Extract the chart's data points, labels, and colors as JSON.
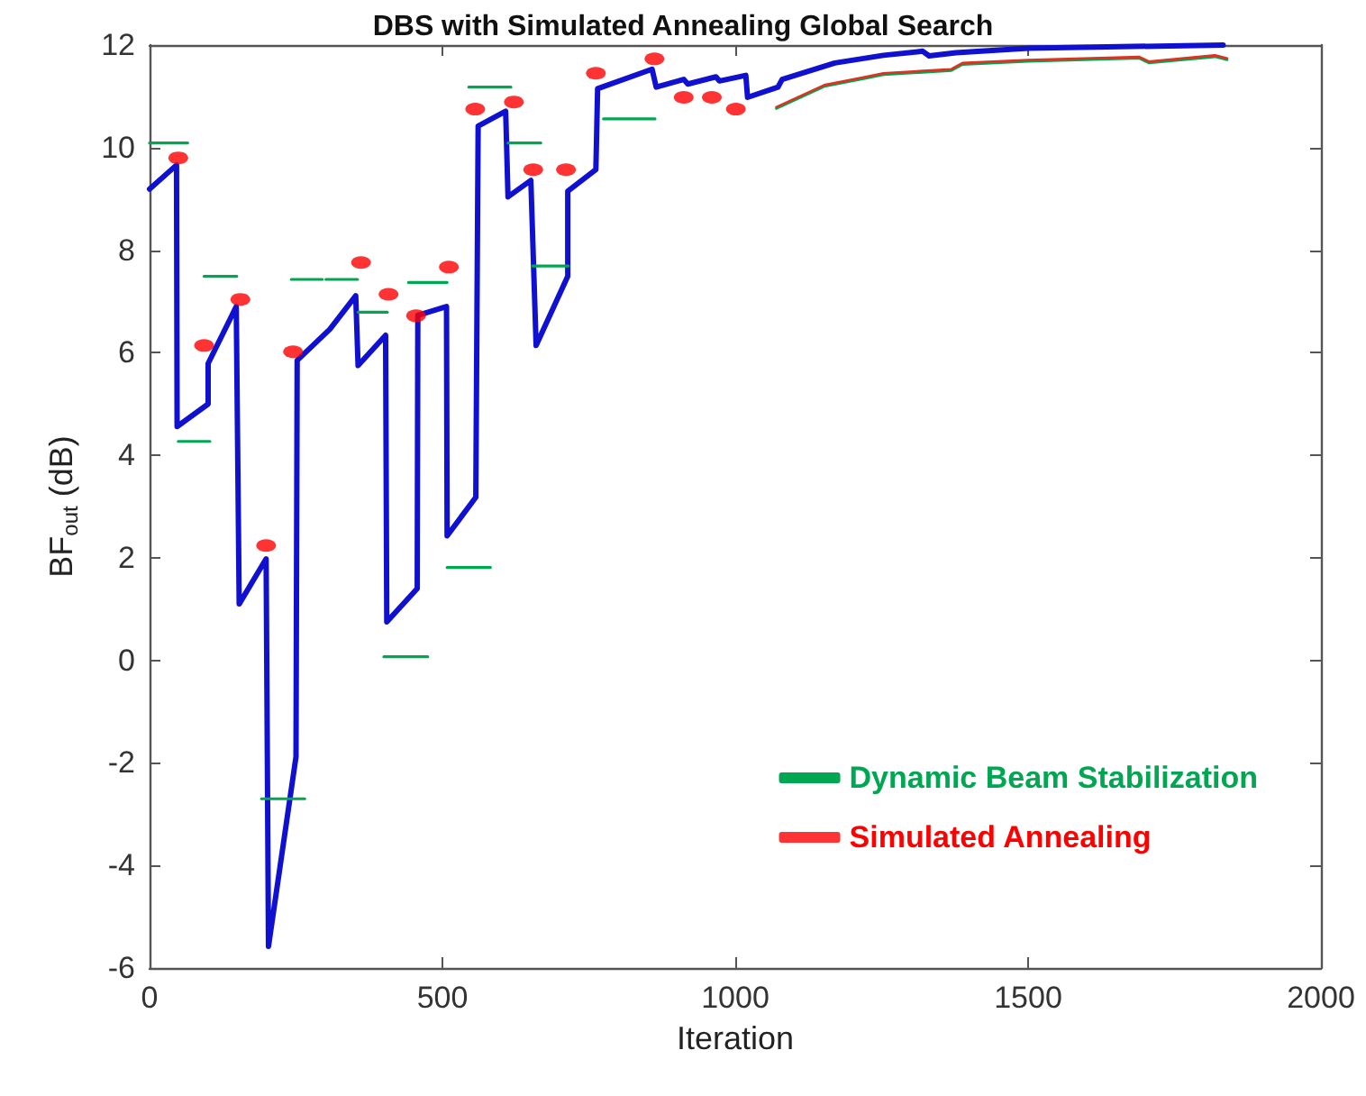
{
  "chart_data": {
    "type": "line",
    "title": "DBS with Simulated Annealing Global Search",
    "xlabel": "Iteration",
    "ylabel": "BF$_{out}$ (dB)",
    "xlim": [
      0,
      2000
    ],
    "xticks": [
      0,
      500,
      1000,
      1500,
      2000
    ],
    "ylim": [
      -6,
      12
    ],
    "yticks": [
      -6,
      -4,
      -2,
      0,
      2,
      4,
      6,
      8,
      10,
      12
    ],
    "grid": false,
    "legend": "bottom right",
    "series": [
      {
        "color": "#1010d0",
        "x": [
          0,
          46,
          47,
          100,
          100,
          148,
          153,
          199,
          203,
          250,
          252,
          308,
          352,
          356,
          403,
          405,
          457,
          458,
          507,
          508,
          557,
          561,
          608,
          612,
          651,
          660,
          714,
          714,
          762,
          765,
          858,
          865,
          912,
          919,
          967,
          973,
          1018,
          1021,
          1073,
          1080,
          1170,
          1253,
          1320,
          1331,
          1377,
          1500,
          1833
        ],
        "values": [
          9.19,
          9.66,
          4.56,
          5.0,
          5.79,
          6.9,
          1.1,
          1.98,
          -5.58,
          -1.88,
          5.85,
          6.46,
          7.11,
          5.75,
          6.34,
          0.75,
          1.4,
          6.73,
          6.9,
          2.43,
          3.18,
          10.42,
          10.71,
          9.04,
          9.36,
          6.14,
          7.49,
          9.15,
          9.57,
          11.15,
          11.53,
          11.18,
          11.33,
          11.24,
          11.38,
          11.3,
          11.41,
          10.98,
          11.18,
          11.33,
          11.65,
          11.8,
          11.88,
          11.79,
          11.85,
          11.94,
          12.0
        ]
      },
      {
        "name": "Dynamic Beam Stabilization",
        "color": "#00a651",
        "x": [
          0,
          65,
          null,
          49,
          103,
          null,
          93,
          149,
          null,
          242,
          295,
          null,
          301,
          355,
          null,
          356,
          406,
          null,
          442,
          508,
          null,
          545,
          617,
          null,
          612,
          668,
          null,
          654,
          715,
          null,
          775,
          863,
          null,
          508,
          582,
          null,
          400,
          475,
          null,
          191,
          265
        ],
        "values": [
          10.09,
          10.09,
          null,
          4.27,
          4.27,
          null,
          7.49,
          7.49,
          null,
          7.43,
          7.43,
          null,
          7.43,
          7.43,
          null,
          6.79,
          6.79,
          null,
          7.37,
          7.37,
          null,
          11.18,
          11.18,
          null,
          10.09,
          10.09,
          null,
          7.69,
          7.69,
          null,
          10.56,
          10.56,
          null,
          1.81,
          1.81,
          null,
          0.07,
          0.07,
          null,
          -2.7,
          -2.7
        ]
      },
      {
        "name": "Simulated Annealing",
        "type": "scatter",
        "marker": "circle",
        "color": "#ff0000",
        "x": [
          49,
          93,
          155,
          199,
          245,
          361,
          408,
          455,
          511,
          556,
          622,
          655,
          711,
          762,
          862,
          912,
          960,
          1001
        ],
        "values": [
          9.8,
          6.14,
          7.04,
          2.24,
          6.02,
          7.76,
          7.14,
          6.72,
          7.67,
          10.75,
          10.89,
          9.57,
          9.57,
          11.45,
          11.73,
          10.98,
          10.98,
          10.75
        ]
      },
      {
        "color": "#00a651",
        "x": [
          1070,
          1152,
          1223,
          1253,
          1369,
          1388,
          1500,
          1690,
          1706,
          1819,
          1840
        ],
        "values": [
          10.76,
          11.19,
          11.35,
          11.42,
          11.5,
          11.62,
          11.68,
          11.74,
          11.65,
          11.77,
          11.71
        ]
      },
      {
        "color": "#e03020",
        "x": [
          1070,
          1152,
          1223,
          1253,
          1369,
          1388,
          1500,
          1690,
          1706,
          1819,
          1840
        ],
        "values": [
          10.79,
          11.22,
          11.38,
          11.45,
          11.53,
          11.65,
          11.71,
          11.77,
          11.68,
          11.8,
          11.74
        ]
      }
    ]
  }
}
